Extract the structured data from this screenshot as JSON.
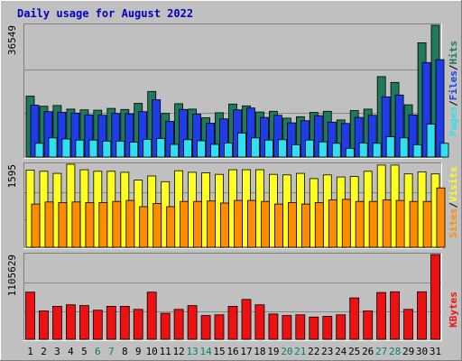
{
  "colors": {
    "background": "#C0C0C0",
    "frame_light": "#FFFFFF",
    "frame_dark": "#808080",
    "title": "#0000C0",
    "hits": "#1E7A5A",
    "files": "#1E3CE8",
    "pages": "#2FE0F0",
    "visits": "#FFFF22",
    "sites": "#FF8C00",
    "kbytes": "#EE1111",
    "gridline": "#888888",
    "label_weekday": "#000000",
    "label_weekend": "#00806E"
  },
  "chart_data": {
    "type": "bar",
    "title": "Daily usage for August 2022",
    "categories": [
      "1",
      "2",
      "3",
      "4",
      "5",
      "6",
      "7",
      "8",
      "9",
      "10",
      "11",
      "12",
      "13",
      "14",
      "15",
      "16",
      "17",
      "18",
      "19",
      "20",
      "21",
      "22",
      "23",
      "24",
      "25",
      "26",
      "27",
      "28",
      "29",
      "30",
      "31"
    ],
    "weekend_days": [
      "6",
      "7",
      "13",
      "14",
      "20",
      "21",
      "27",
      "28"
    ],
    "panels": [
      {
        "id": "hits_files_pages",
        "max_label": "36549",
        "ylim": [
          0,
          36549
        ],
        "series": [
          {
            "name": "Hits",
            "color_key": "hits",
            "values": [
              16900,
              14100,
              14300,
              13300,
              13100,
              13000,
              13500,
              13200,
              14900,
              18200,
              12100,
              14800,
              13300,
              10900,
              12300,
              14700,
              14200,
              12500,
              12700,
              10800,
              11200,
              12400,
              12700,
              10300,
              12900,
              13300,
              22300,
              20700,
              14500,
              31700,
              36549
            ]
          },
          {
            "name": "Files",
            "color_key": "files",
            "values": [
              14400,
              12600,
              12400,
              12200,
              11700,
              11600,
              12100,
              12000,
              12600,
              15900,
              9900,
              13200,
              11900,
              9400,
              10600,
              13100,
              13600,
              11000,
              11600,
              9500,
              10100,
              11500,
              9700,
              9300,
              11000,
              11600,
              16700,
              17200,
              11700,
              26200,
              27000
            ]
          },
          {
            "name": "Pages",
            "color_key": "pages",
            "values": [
              3800,
              5300,
              5000,
              4700,
              4700,
              4400,
              4400,
              4100,
              4900,
              5100,
              3500,
              4800,
              4500,
              3500,
              3900,
              6600,
              5300,
              4700,
              4800,
              3400,
              4700,
              4200,
              3800,
              2400,
              3900,
              3800,
              5600,
              5300,
              3400,
              9100,
              3800
            ]
          }
        ]
      },
      {
        "id": "visits_sites",
        "max_label": "1595",
        "ylim": [
          0,
          1595
        ],
        "series": [
          {
            "name": "Visits",
            "color_key": "visits",
            "values": [
              1480,
              1460,
              1420,
              1595,
              1490,
              1460,
              1460,
              1440,
              1290,
              1370,
              1260,
              1470,
              1440,
              1430,
              1400,
              1490,
              1490,
              1490,
              1400,
              1390,
              1420,
              1320,
              1390,
              1350,
              1360,
              1460,
              1580,
              1580,
              1410,
              1450,
              1410
            ]
          },
          {
            "name": "Sites",
            "color_key": "sites",
            "values": [
              830,
              870,
              860,
              870,
              860,
              860,
              880,
              900,
              780,
              840,
              780,
              880,
              880,
              890,
              850,
              900,
              900,
              880,
              830,
              860,
              830,
              860,
              910,
              920,
              880,
              880,
              910,
              900,
              880,
              880,
              1140
            ]
          }
        ]
      },
      {
        "id": "kbytes",
        "max_label": "1105629",
        "ylim": [
          0,
          1105629
        ],
        "series": [
          {
            "name": "KBytes",
            "color_key": "kbytes",
            "values": [
              615000,
              370000,
              430000,
              450000,
              440000,
              380000,
              430000,
              430000,
              390000,
              615000,
              340000,
              390000,
              440000,
              310000,
              320000,
              430000,
              520000,
              450000,
              330000,
              310000,
              320000,
              290000,
              300000,
              320000,
              540000,
              370000,
              610000,
              620000,
              390000,
              620000,
              1105629
            ]
          }
        ]
      }
    ],
    "legend_placement": "right",
    "grid": "horizontal"
  }
}
